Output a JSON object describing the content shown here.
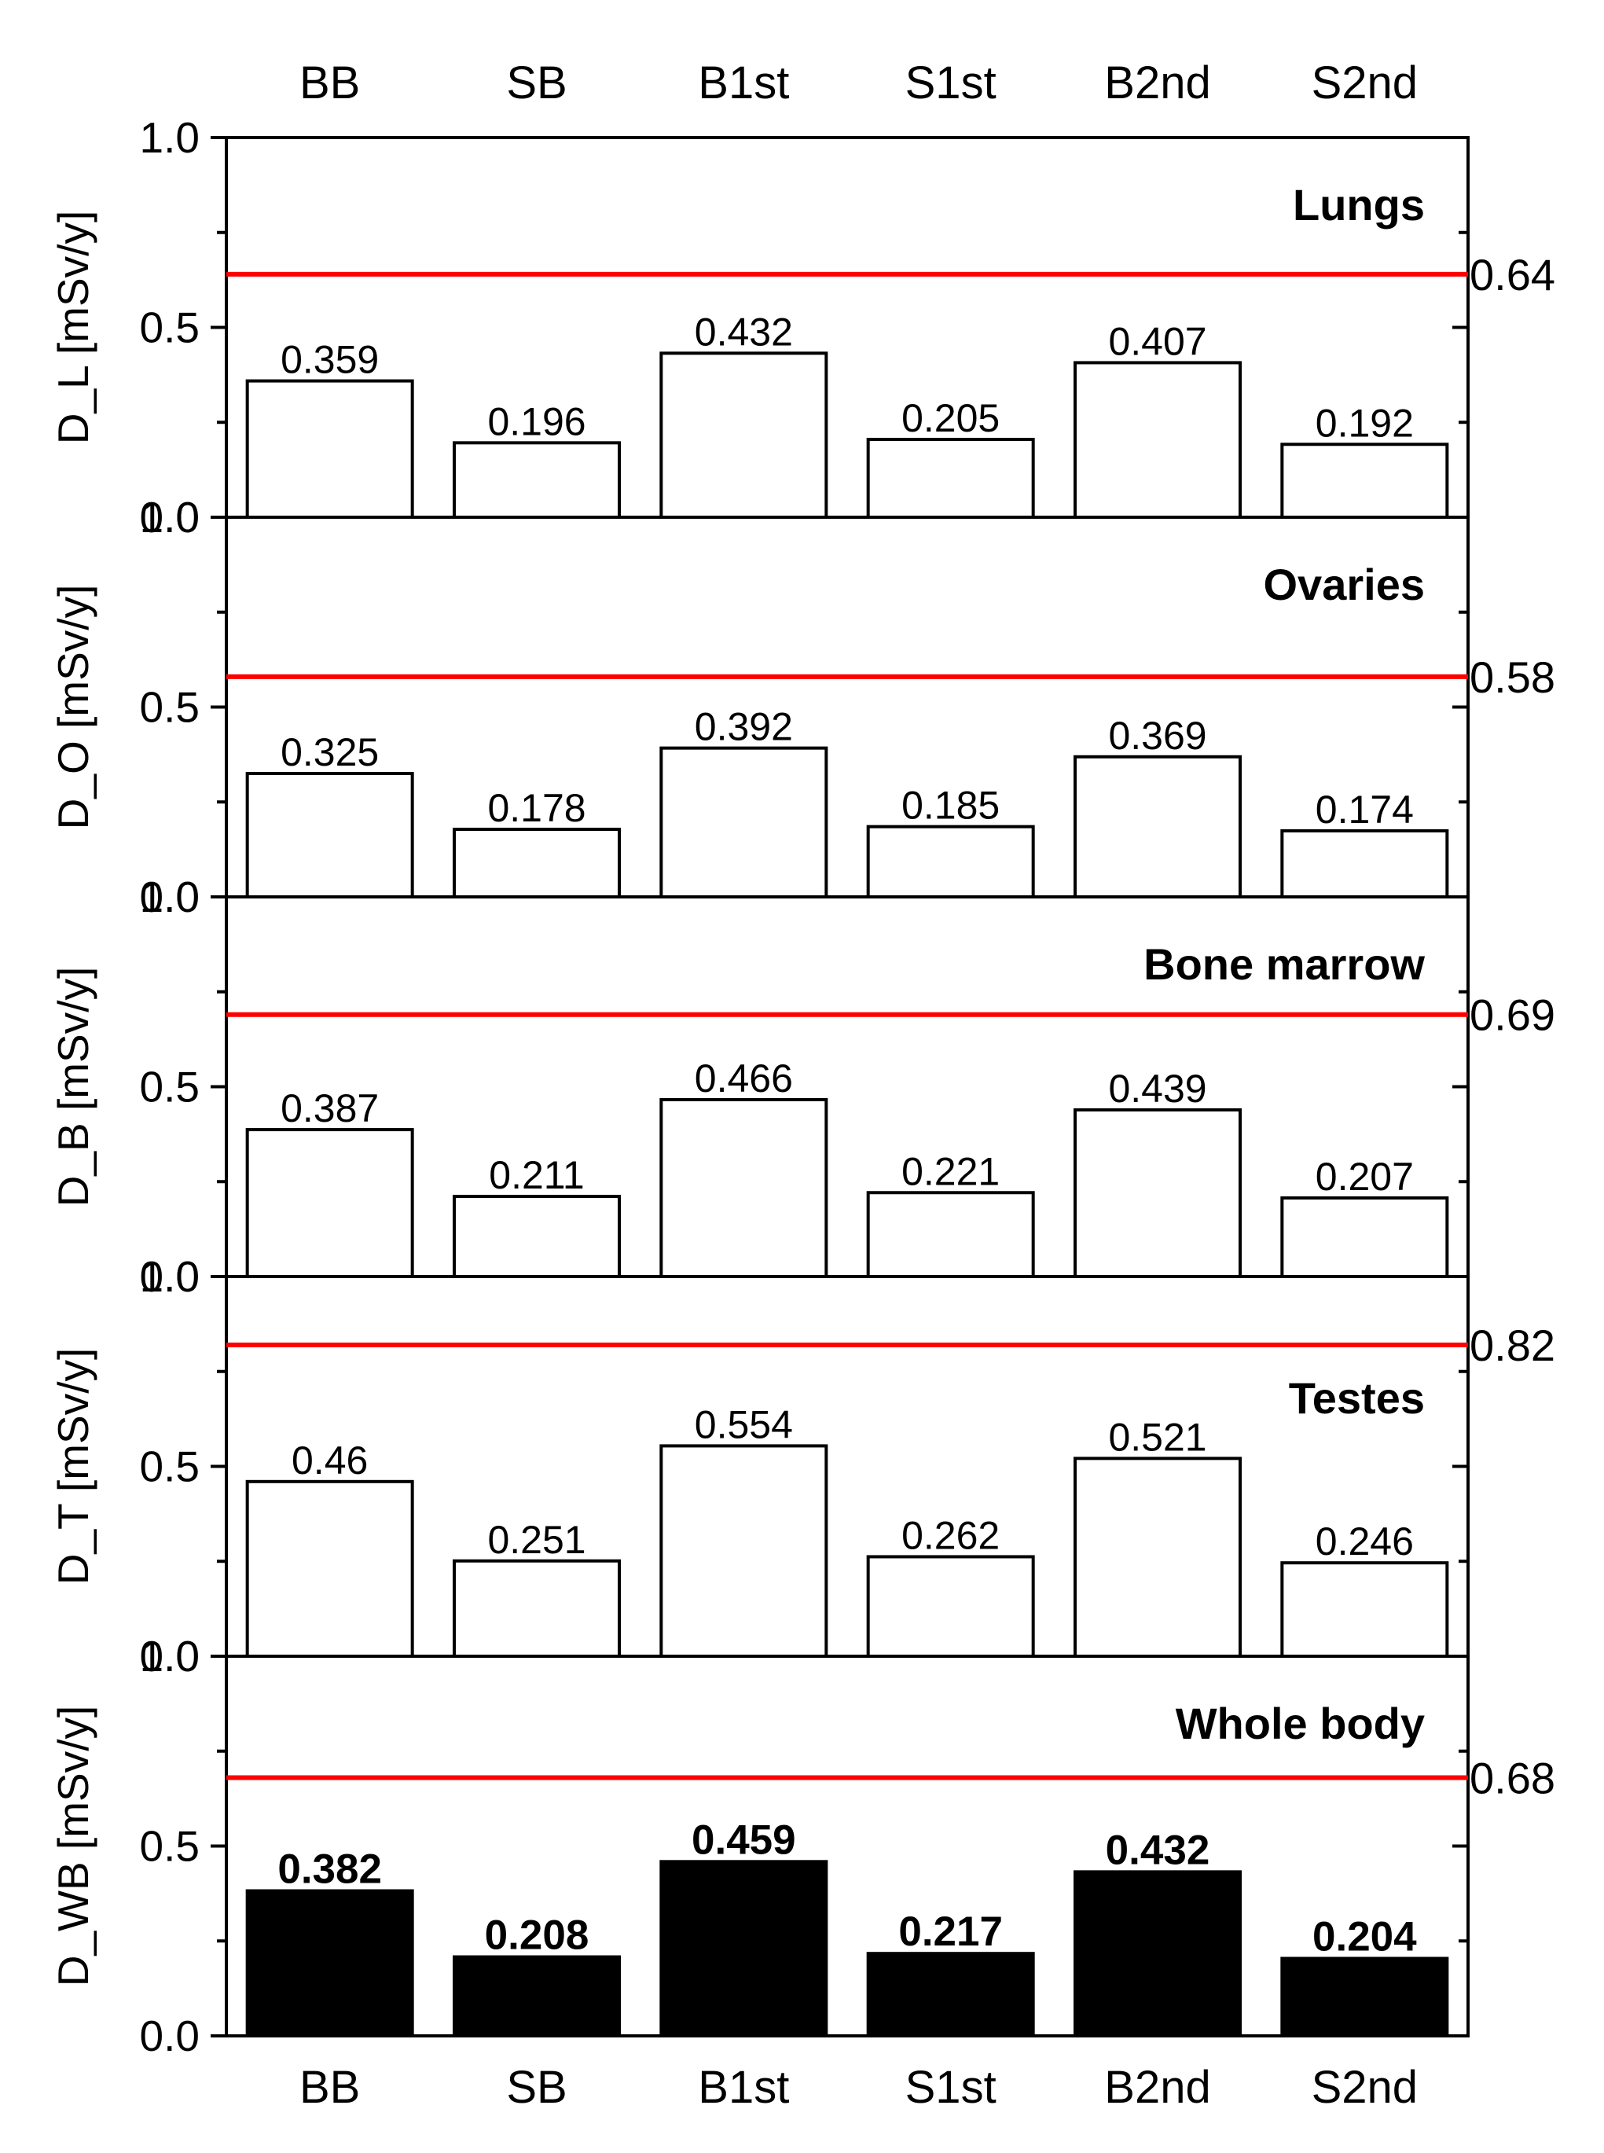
{
  "chart_data": {
    "type": "bar",
    "categories": [
      "BB",
      "SB",
      "B1st",
      "S1st",
      "B2nd",
      "S2nd"
    ],
    "ylim": [
      0,
      1.0
    ],
    "yticks": [
      "0.0",
      "0.5",
      "1.0"
    ],
    "panels": [
      {
        "title": "Lungs",
        "ylabel": "D_L [mSv/y]",
        "values": [
          0.359,
          0.196,
          0.432,
          0.205,
          0.407,
          0.192
        ],
        "value_labels": [
          "0.359",
          "0.196",
          "0.432",
          "0.205",
          "0.407",
          "0.192"
        ],
        "reference": 0.64,
        "reference_label": "0.64",
        "filled": false
      },
      {
        "title": "Ovaries",
        "ylabel": "D_O [mSv/y]",
        "values": [
          0.325,
          0.178,
          0.392,
          0.185,
          0.369,
          0.174
        ],
        "value_labels": [
          "0.325",
          "0.178",
          "0.392",
          "0.185",
          "0.369",
          "0.174"
        ],
        "reference": 0.58,
        "reference_label": "0.58",
        "filled": false
      },
      {
        "title": "Bone marrow",
        "ylabel": "D_B [mSv/y]",
        "values": [
          0.387,
          0.211,
          0.466,
          0.221,
          0.439,
          0.207
        ],
        "value_labels": [
          "0.387",
          "0.211",
          "0.466",
          "0.221",
          "0.439",
          "0.207"
        ],
        "reference": 0.69,
        "reference_label": "0.69",
        "filled": false
      },
      {
        "title": "Testes",
        "ylabel": "D_T [mSv/y]",
        "values": [
          0.46,
          0.251,
          0.554,
          0.262,
          0.521,
          0.246
        ],
        "value_labels": [
          "0.46",
          "0.251",
          "0.554",
          "0.262",
          "0.521",
          "0.246"
        ],
        "reference": 0.82,
        "reference_label": "0.82",
        "filled": false
      },
      {
        "title": "Whole body",
        "ylabel": "D_WB [mSv/y]",
        "values": [
          0.382,
          0.208,
          0.459,
          0.217,
          0.432,
          0.204
        ],
        "value_labels": [
          "0.382",
          "0.208",
          "0.459",
          "0.217",
          "0.432",
          "0.204"
        ],
        "reference": 0.68,
        "reference_label": "0.68",
        "filled": true
      }
    ]
  },
  "colors": {
    "reference_line": "#ff0000",
    "axis": "#000000",
    "bar_fill_filled": "#000000",
    "bar_fill_open": "#ffffff",
    "background": "#ffffff"
  }
}
